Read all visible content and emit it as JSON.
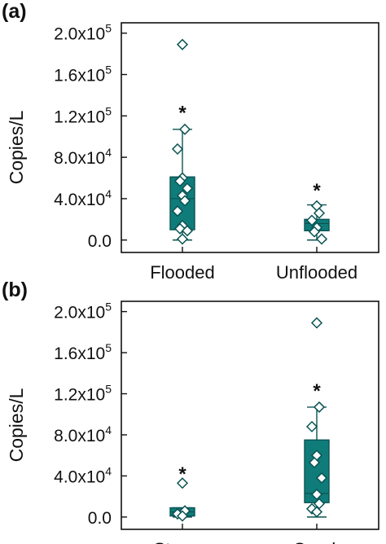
{
  "colors": {
    "box_fill": "#0f7c7a",
    "box_edge": "#0a5352",
    "axis": "#111111",
    "marker_edge": "#0a5352",
    "marker_fill": "#ffffff"
  },
  "chart_data": [
    {
      "panel_label": "(a)",
      "type": "box",
      "ylabel": "Copies/L",
      "ylim": [
        -12000,
        210000
      ],
      "y_ticks": [
        0,
        40000,
        80000,
        120000,
        160000,
        200000
      ],
      "y_tick_labels": [
        {
          "mantissa": "0.0",
          "exp": ""
        },
        {
          "mantissa": "4.0x10",
          "exp": "4"
        },
        {
          "mantissa": "8.0x10",
          "exp": "4"
        },
        {
          "mantissa": "1.2x10",
          "exp": "5"
        },
        {
          "mantissa": "1.6x10",
          "exp": "5"
        },
        {
          "mantissa": "2.0x10",
          "exp": "5"
        }
      ],
      "categories": [
        "Flooded",
        "Unflooded"
      ],
      "boxes": [
        {
          "q1": 10000,
          "median": 40000,
          "q3": 61000,
          "whisker_low": 0,
          "whisker_high": 107000,
          "mean_marker": "*",
          "mean_y": 126000,
          "points": [
            189000,
            107000,
            88000,
            60000,
            57000,
            50000,
            43000,
            38000,
            28000,
            14000,
            11000,
            9000,
            1000
          ]
        },
        {
          "q1": 9000,
          "median": 16000,
          "q3": 20000,
          "whisker_low": 0,
          "whisker_high": 34000,
          "mean_marker": "*",
          "mean_y": 51000,
          "points": [
            33000,
            26000,
            19000,
            12000,
            8000,
            1000
          ]
        }
      ],
      "grid": false
    },
    {
      "panel_label": "(b)",
      "type": "box",
      "ylabel": "Copies/L",
      "ylim": [
        -12000,
        210000
      ],
      "y_ticks": [
        0,
        40000,
        80000,
        120000,
        160000,
        200000
      ],
      "y_tick_labels": [
        {
          "mantissa": "0.0",
          "exp": ""
        },
        {
          "mantissa": "4.0x10",
          "exp": "4"
        },
        {
          "mantissa": "8.0x10",
          "exp": "4"
        },
        {
          "mantissa": "1.2x10",
          "exp": "5"
        },
        {
          "mantissa": "1.6x10",
          "exp": "5"
        },
        {
          "mantissa": "2.0x10",
          "exp": "5"
        }
      ],
      "categories": [
        "Stream",
        "Creek"
      ],
      "boxes": [
        {
          "q1": 1000,
          "median": 5000,
          "q3": 9000,
          "whisker_low": 0,
          "whisker_high": 9000,
          "mean_marker": "*",
          "mean_y": 45000,
          "points": [
            33000,
            6000,
            3000,
            1000
          ]
        },
        {
          "q1": 14000,
          "median": 23000,
          "q3": 75000,
          "whisker_low": 0,
          "whisker_high": 107000,
          "mean_marker": "*",
          "mean_y": 126000,
          "points": [
            189000,
            107000,
            88000,
            60000,
            53000,
            38000,
            22000,
            13000,
            8000,
            5000
          ]
        }
      ],
      "grid": false
    }
  ]
}
